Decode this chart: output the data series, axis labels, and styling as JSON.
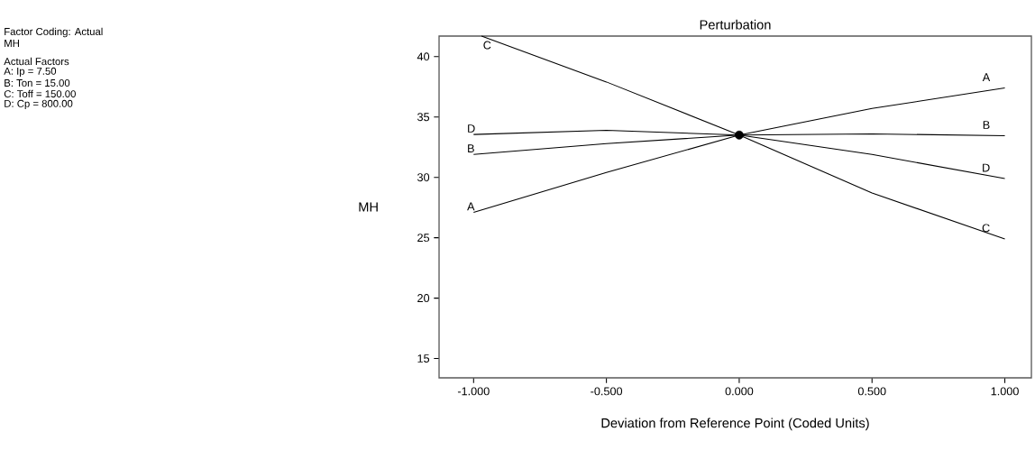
{
  "chart_data": {
    "type": "line",
    "title": "Perturbation",
    "xlabel": "Deviation from Reference Point (Coded Units)",
    "ylabel": "MH",
    "annotations": [
      "Factor Coding: Actual",
      "MH",
      "Actual Factors",
      "A: Ip = 7.50",
      "B: Ton = 15.00",
      "C: Toff = 150.00",
      "D: Cp = 800.00"
    ],
    "x": [
      -1,
      -0.5,
      0,
      0.5,
      1
    ],
    "series": [
      {
        "name": "A",
        "color": "#000000",
        "values": [
          27.1,
          30.4,
          33.5,
          35.7,
          37.4
        ]
      },
      {
        "name": "B",
        "color": "#000000",
        "values": [
          31.9,
          32.8,
          33.5,
          33.6,
          33.45
        ]
      },
      {
        "name": "C",
        "color": "#000000",
        "x": [
          -0.97,
          -0.5,
          0,
          0.5,
          1
        ],
        "values": [
          41.7,
          37.9,
          33.5,
          28.7,
          24.9
        ]
      },
      {
        "name": "D",
        "color": "#000000",
        "values": [
          33.55,
          33.9,
          33.5,
          31.9,
          29.9
        ]
      },
      {
        "type": "scatter",
        "color": "#000000",
        "x": [
          0
        ],
        "values": [
          33.5
        ],
        "marker": "circle"
      }
    ],
    "xlim": [
      -1.13,
      1.1
    ],
    "ylim": [
      13.4,
      41.7
    ],
    "xticks": [
      {
        "value": -1,
        "label": "-1.000"
      },
      {
        "value": -0.5,
        "label": "-0.500"
      },
      {
        "value": 0,
        "label": "0.000"
      },
      {
        "value": 0.5,
        "label": "0.500"
      },
      {
        "value": 1,
        "label": "1.000"
      }
    ],
    "yticks": [
      15,
      20,
      25,
      30,
      35,
      40
    ],
    "grid": false,
    "marker": "none"
  }
}
